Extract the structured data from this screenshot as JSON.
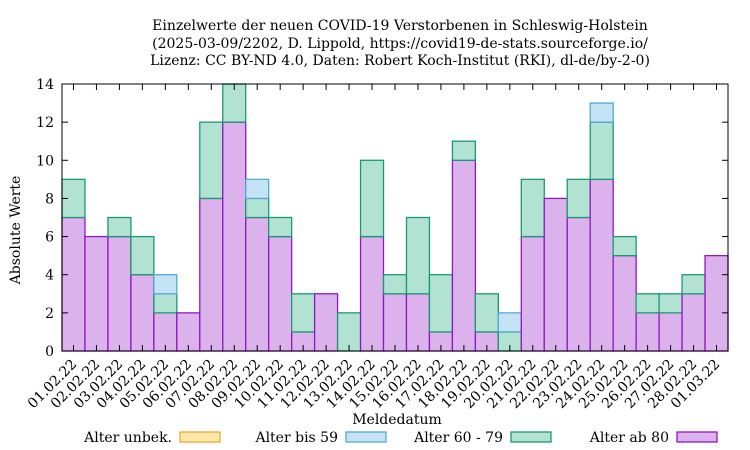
{
  "chart_data": {
    "type": "bar",
    "stacked": true,
    "title_lines": [
      "Einzelwerte der neuen COVID-19 Verstorbenen in Schleswig-Holstein",
      "(2025-03-09/2202, D. Lippold, https://covid19-de-stats.sourceforge.io/",
      "Lizenz: CC BY-ND 4.0, Daten: Robert Koch-Institut (RKI), dl-de/by-2-0)"
    ],
    "xlabel": "Meldedatum",
    "ylabel": "Absolute Werte",
    "ylim": [
      0,
      14
    ],
    "yticks": [
      0,
      2,
      4,
      6,
      8,
      10,
      12,
      14
    ],
    "categories": [
      "01.02.22",
      "02.02.22",
      "03.02.22",
      "04.02.22",
      "05.02.22",
      "06.02.22",
      "07.02.22",
      "08.02.22",
      "09.02.22",
      "10.02.22",
      "11.02.22",
      "12.02.22",
      "13.02.22",
      "14.02.22",
      "15.02.22",
      "16.02.22",
      "17.02.22",
      "18.02.22",
      "19.02.22",
      "20.02.22",
      "21.02.22",
      "22.02.22",
      "23.02.22",
      "24.02.22",
      "25.02.22",
      "26.02.22",
      "27.02.22",
      "28.02.22",
      "01.03.22"
    ],
    "series": [
      {
        "name": "Alter unbek.",
        "color": "#f0a830",
        "fill": "#fde8a8",
        "values": [
          0,
          0,
          0,
          0,
          0,
          0,
          0,
          0,
          0,
          0,
          0,
          0,
          0,
          0,
          0,
          0,
          0,
          0,
          0,
          0,
          0,
          0,
          0,
          0,
          0,
          0,
          0,
          0,
          0
        ]
      },
      {
        "name": "Alter bis 59",
        "color": "#56a8d8",
        "fill": "#c4e4f6",
        "values": [
          0,
          0,
          0,
          0,
          1,
          0,
          0,
          0,
          1,
          0,
          0,
          0,
          0,
          0,
          0,
          0,
          0,
          0,
          0,
          1,
          0,
          0,
          0,
          1,
          0,
          0,
          0,
          0,
          0
        ]
      },
      {
        "name": "Alter 60 - 79",
        "color": "#1a9a72",
        "fill": "#b2e2d2",
        "values": [
          2,
          0,
          1,
          2,
          1,
          0,
          4,
          2,
          1,
          1,
          2,
          0,
          2,
          4,
          1,
          4,
          3,
          1,
          2,
          1,
          3,
          0,
          2,
          3,
          1,
          1,
          1,
          1,
          0
        ]
      },
      {
        "name": "Alter ab 80",
        "color": "#9018c0",
        "fill": "#dcb2ec",
        "values": [
          7,
          6,
          6,
          4,
          2,
          2,
          8,
          12,
          7,
          6,
          1,
          3,
          0,
          6,
          3,
          3,
          1,
          10,
          1,
          0,
          6,
          8,
          7,
          9,
          5,
          2,
          2,
          3,
          5
        ]
      }
    ],
    "stack_order": [
      "Alter ab 80",
      "Alter 60 - 79",
      "Alter bis 59",
      "Alter unbek."
    ],
    "legend_position": "bottom",
    "grid": false
  }
}
